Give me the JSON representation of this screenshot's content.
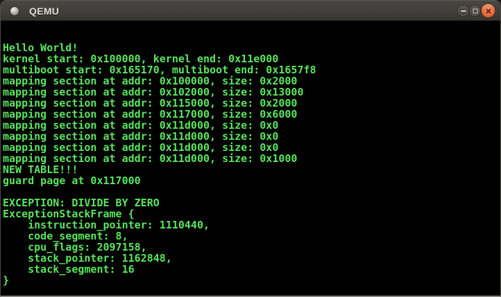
{
  "window": {
    "title": "QEMU"
  },
  "colors": {
    "titlebar_bg_top": "#484743",
    "titlebar_bg_bottom": "#353430",
    "title_text": "#e2ded7",
    "button_gray": "#413f3a",
    "close_button": "#e86d3f",
    "window_border": "#504e48",
    "window_bottom_edge": "#85837d",
    "terminal_bg": "#000000",
    "terminal_fg": "#5ae65e"
  },
  "controls": {
    "minimize_icon": "minus",
    "maximize_icon": "square-outline",
    "close_icon": "x"
  },
  "terminal": {
    "lines": [
      "Hello World!",
      "kernel start: 0x100000, kernel end: 0x11e000",
      "multiboot start: 0x165170, multiboot end: 0x1657f8",
      "mapping section at addr: 0x100000, size: 0x2000",
      "mapping section at addr: 0x102000, size: 0x13000",
      "mapping section at addr: 0x115000, size: 0x2000",
      "mapping section at addr: 0x117000, size: 0x6000",
      "mapping section at addr: 0x11d000, size: 0x0",
      "mapping section at addr: 0x11d000, size: 0x0",
      "mapping section at addr: 0x11d000, size: 0x0",
      "mapping section at addr: 0x11d000, size: 0x1000",
      "NEW TABLE!!!",
      "guard page at 0x117000",
      "",
      "EXCEPTION: DIVIDE BY ZERO",
      "ExceptionStackFrame {",
      "    instruction_pointer: 1110440,",
      "    code_segment: 8,",
      "    cpu_flags: 2097158,",
      "    stack_pointer: 1162848,",
      "    stack_segment: 16",
      "}"
    ]
  }
}
